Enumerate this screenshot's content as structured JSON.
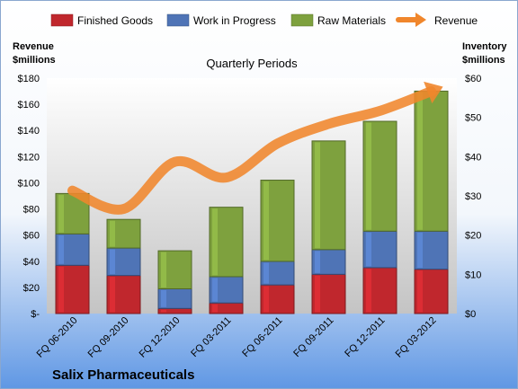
{
  "chart_data": {
    "type": "bar",
    "stacked": true,
    "title": "Quarterly Periods",
    "company": "Salix Pharmaceuticals",
    "categories": [
      "FQ 06-2010",
      "FQ 09-2010",
      "FQ 12-2010",
      "FQ 03-2011",
      "FQ 06-2011",
      "FQ 09-2011",
      "FQ 12-2011",
      "FQ 03-2012"
    ],
    "y_left": {
      "label_line1": "Revenue",
      "label_line2": "$millions",
      "ylim": [
        0,
        180
      ],
      "ticks": [
        0,
        20,
        40,
        60,
        80,
        100,
        120,
        140,
        160,
        180
      ],
      "tick_labels": [
        "$-",
        "$20",
        "$40",
        "$60",
        "$80",
        "$100",
        "$120",
        "$140",
        "$160",
        "$180"
      ]
    },
    "y_right": {
      "label_line1": "Inventory",
      "label_line2": "$millions",
      "ylim": [
        0,
        60
      ],
      "ticks": [
        0,
        10,
        20,
        30,
        40,
        50,
        60
      ],
      "tick_labels": [
        "$0",
        "$10",
        "$20",
        "$30",
        "$40",
        "$50",
        "$60"
      ]
    },
    "series": [
      {
        "name": "Finished Goods",
        "kind": "bar",
        "axis": "right",
        "color": "#c0272d",
        "values": [
          12.3,
          9.7,
          1.3,
          2.7,
          7.3,
          10.0,
          11.7,
          11.3
        ]
      },
      {
        "name": "Work in Progress",
        "kind": "bar",
        "axis": "right",
        "color": "#4f74b6",
        "values": [
          8.0,
          7.0,
          5.0,
          6.7,
          6.0,
          6.3,
          9.3,
          9.7
        ]
      },
      {
        "name": "Raw Materials",
        "kind": "bar",
        "axis": "right",
        "color": "#7ea13e",
        "values": [
          10.3,
          7.3,
          9.7,
          17.7,
          20.7,
          27.7,
          28.0,
          35.7
        ]
      },
      {
        "name": "Revenue",
        "kind": "line",
        "axis": "left",
        "color": "#f0862c",
        "values": [
          94,
          80,
          116,
          104,
          130,
          145,
          155,
          170
        ]
      }
    ],
    "legend": "top",
    "grid": false
  },
  "colors": {
    "background_top": "#ffffff",
    "background_bottom": "#5f97e4",
    "plot_face": "#c8c8c8"
  }
}
